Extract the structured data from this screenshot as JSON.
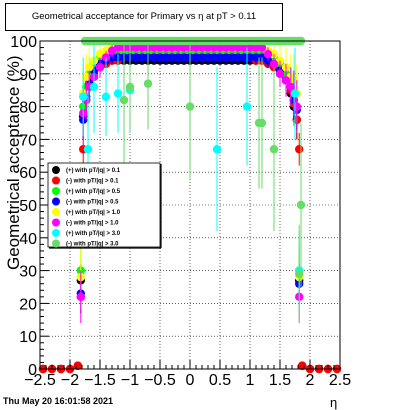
{
  "title": "Geometrical acceptance for Primary vs   η at pT > 0.11",
  "timestamp": "Thu May 20 16:01:58 2021",
  "chart_data": {
    "type": "scatter",
    "title": "Geometrical acceptance for Primary vs   η at pT > 0.11",
    "xlabel": "η",
    "ylabel": "Geometrical acceptance (%)",
    "xlim": [
      -2.5,
      2.5
    ],
    "ylim": [
      0,
      100
    ],
    "xticks": [
      "−2.5",
      "−2",
      "−1.5",
      "−1",
      "−0.5",
      "0",
      "0.5",
      "1",
      "1.5",
      "2",
      "2.5"
    ],
    "yticks": [
      "0",
      "10",
      "20",
      "30",
      "40",
      "50",
      "60",
      "70",
      "80",
      "90",
      "100"
    ],
    "grid": true,
    "legend_position": "left-center",
    "series": [
      {
        "name": "(+) with pT/|q| > 0.1",
        "color": "#000000",
        "x": [
          -2.45,
          -2.3,
          -2.15,
          -2.0,
          -1.87,
          -1.82,
          -1.78,
          -1.73,
          -1.68,
          -1.6,
          -1.5,
          -1.4,
          -1.3,
          -1.2,
          -1.1,
          -1.0,
          -0.9,
          -0.8,
          -0.7,
          -0.6,
          -0.5,
          -0.4,
          -0.3,
          -0.2,
          -0.1,
          0.0,
          0.1,
          0.2,
          0.3,
          0.4,
          0.5,
          0.6,
          0.7,
          0.8,
          0.9,
          1.0,
          1.1,
          1.2,
          1.3,
          1.4,
          1.5,
          1.6,
          1.68,
          1.73,
          1.78,
          1.82,
          1.87,
          2.0,
          2.15,
          2.3,
          2.45
        ],
        "y": [
          0,
          0,
          0,
          0,
          1,
          27,
          77,
          82,
          88,
          91,
          93,
          94,
          94,
          94,
          94,
          94,
          94,
          94,
          94,
          94,
          94,
          94,
          94,
          94,
          94,
          94,
          94,
          94,
          94,
          94,
          94,
          94,
          94,
          94,
          94,
          94,
          94,
          94,
          94,
          93,
          91,
          89,
          84,
          80,
          76,
          27,
          1,
          0,
          0,
          0,
          0
        ],
        "err": [
          0,
          0,
          0,
          0,
          0,
          5,
          6,
          4,
          3,
          2,
          1,
          1,
          1,
          1,
          1,
          1,
          1,
          1,
          1,
          1,
          1,
          1,
          1,
          1,
          1,
          1,
          1,
          1,
          1,
          1,
          1,
          1,
          1,
          1,
          1,
          1,
          1,
          1,
          1,
          1,
          2,
          3,
          4,
          5,
          6,
          5,
          0,
          0,
          0,
          0,
          0
        ]
      },
      {
        "name": "(-) with pT/|q| > 0.1",
        "color": "#ff0000",
        "x": [
          -2.45,
          -2.3,
          -2.15,
          -2.0,
          -1.87,
          -1.82,
          -1.78,
          -1.73,
          -1.68,
          -1.6,
          -1.5,
          -1.4,
          -1.3,
          -1.2,
          -1.1,
          -1.0,
          -0.9,
          -0.8,
          -0.7,
          -0.6,
          -0.5,
          -0.4,
          -0.3,
          -0.2,
          -0.1,
          0.0,
          0.1,
          0.2,
          0.3,
          0.4,
          0.5,
          0.6,
          0.7,
          0.8,
          0.9,
          1.0,
          1.1,
          1.2,
          1.3,
          1.4,
          1.5,
          1.6,
          1.68,
          1.73,
          1.78,
          1.82,
          1.87,
          2.0,
          2.15,
          2.3,
          2.45
        ],
        "y": [
          0,
          0,
          0,
          0,
          1,
          22,
          67,
          82,
          87,
          90,
          92,
          93,
          94,
          94,
          95,
          95,
          95,
          95,
          95,
          95,
          95,
          95,
          95,
          95,
          95,
          95,
          95,
          95,
          95,
          95,
          95,
          95,
          95,
          95,
          95,
          95,
          94,
          94,
          93,
          92,
          90,
          88,
          85,
          81,
          76,
          67,
          1,
          0,
          0,
          0,
          0
        ],
        "err": [
          0,
          0,
          0,
          0,
          0,
          5,
          6,
          4,
          3,
          2,
          1,
          1,
          1,
          1,
          1,
          1,
          1,
          1,
          1,
          1,
          1,
          1,
          1,
          1,
          1,
          1,
          1,
          1,
          1,
          1,
          1,
          1,
          1,
          1,
          1,
          1,
          1,
          1,
          1,
          1,
          2,
          3,
          4,
          5,
          6,
          5,
          0,
          0,
          0,
          0,
          0
        ]
      },
      {
        "name": "(+) with pT/|q| > 0.5",
        "color": "#00ff00",
        "x": [
          -1.82,
          -1.78,
          -1.73,
          -1.68,
          -1.6,
          -1.5,
          -1.4,
          -1.3,
          -1.2,
          -1.1,
          -1.0,
          -0.9,
          -0.8,
          -0.7,
          -0.6,
          -0.5,
          -0.4,
          -0.3,
          -0.2,
          -0.1,
          0.0,
          0.1,
          0.2,
          0.3,
          0.4,
          0.5,
          0.6,
          0.7,
          0.8,
          0.9,
          1.0,
          1.1,
          1.2,
          1.3,
          1.4,
          1.5,
          1.6,
          1.68,
          1.73,
          1.78,
          1.82
        ],
        "y": [
          30,
          80,
          86,
          90,
          93,
          95,
          96,
          97,
          97,
          97,
          97,
          97,
          97,
          97,
          97,
          97,
          97,
          97,
          97,
          97,
          97,
          97,
          97,
          97,
          97,
          97,
          97,
          97,
          97,
          97,
          97,
          97,
          97,
          97,
          95,
          93,
          90,
          86,
          82,
          80,
          30
        ],
        "err": [
          8,
          8,
          6,
          5,
          4,
          3,
          2,
          2,
          2,
          2,
          2,
          2,
          2,
          2,
          2,
          2,
          2,
          2,
          2,
          2,
          2,
          2,
          2,
          2,
          2,
          2,
          2,
          2,
          2,
          2,
          2,
          2,
          2,
          2,
          3,
          4,
          5,
          6,
          8,
          8,
          8
        ]
      },
      {
        "name": "(-) with pT/|q| > 0.5",
        "color": "#0000ff",
        "x": [
          -1.82,
          -1.78,
          -1.73,
          -1.68,
          -1.6,
          -1.5,
          -1.4,
          -1.3,
          -1.2,
          -1.1,
          -1.0,
          -0.9,
          -0.8,
          -0.7,
          -0.6,
          -0.5,
          -0.4,
          -0.3,
          -0.2,
          -0.1,
          0.0,
          0.1,
          0.2,
          0.3,
          0.4,
          0.5,
          0.6,
          0.7,
          0.8,
          0.9,
          1.0,
          1.1,
          1.2,
          1.3,
          1.4,
          1.5,
          1.6,
          1.68,
          1.73,
          1.78,
          1.82
        ],
        "y": [
          23,
          76,
          83,
          87,
          91,
          93,
          94,
          95,
          95,
          95,
          95,
          95,
          95,
          95,
          95,
          95,
          95,
          95,
          95,
          95,
          95,
          95,
          95,
          95,
          95,
          95,
          95,
          95,
          95,
          95,
          95,
          95,
          95,
          94,
          93,
          91,
          88,
          86,
          82,
          79,
          26
        ],
        "err": [
          6,
          6,
          5,
          4,
          3,
          2,
          2,
          2,
          2,
          2,
          2,
          2,
          2,
          2,
          2,
          2,
          2,
          2,
          2,
          2,
          2,
          2,
          2,
          2,
          2,
          2,
          2,
          2,
          2,
          2,
          2,
          2,
          2,
          2,
          2,
          3,
          4,
          5,
          6,
          6,
          6
        ]
      },
      {
        "name": "(+) with pT/|q| > 1.0",
        "color": "#ffff00",
        "x": [
          -1.82,
          -1.78,
          -1.73,
          -1.68,
          -1.6,
          -1.5,
          -1.4,
          -1.3,
          -1.2,
          -1.1,
          -1.0,
          -0.9,
          -0.8,
          -0.7,
          -0.6,
          -0.5,
          -0.4,
          -0.3,
          -0.2,
          -0.1,
          0.0,
          0.1,
          0.2,
          0.3,
          0.4,
          0.5,
          0.6,
          0.7,
          0.8,
          0.9,
          1.0,
          1.1,
          1.2,
          1.3,
          1.4,
          1.5,
          1.6,
          1.68,
          1.73,
          1.78,
          1.82
        ],
        "y": [
          28,
          84,
          89,
          92,
          94,
          96,
          97,
          98,
          98,
          98,
          98,
          98,
          98,
          98,
          98,
          98,
          98,
          98,
          98,
          98,
          98,
          98,
          98,
          98,
          98,
          98,
          98,
          98,
          98,
          98,
          98,
          98,
          98,
          97,
          96,
          94,
          92,
          89,
          88,
          84,
          28
        ],
        "err": [
          10,
          9,
          7,
          6,
          5,
          3,
          2,
          2,
          2,
          2,
          2,
          2,
          2,
          2,
          2,
          2,
          2,
          2,
          2,
          2,
          2,
          2,
          2,
          2,
          2,
          2,
          2,
          2,
          2,
          2,
          2,
          2,
          2,
          2,
          3,
          5,
          6,
          7,
          8,
          9,
          10
        ]
      },
      {
        "name": "(-) with pT/|q| > 1.0",
        "color": "#ff00ff",
        "x": [
          -1.82,
          -1.78,
          -1.73,
          -1.68,
          -1.6,
          -1.5,
          -1.4,
          -1.3,
          -1.2,
          -1.1,
          -1.0,
          -0.9,
          -0.8,
          -0.7,
          -0.6,
          -0.5,
          -0.4,
          -0.3,
          -0.2,
          -0.1,
          0.0,
          0.1,
          0.2,
          0.3,
          0.4,
          0.5,
          0.6,
          0.7,
          0.8,
          0.9,
          1.0,
          1.1,
          1.2,
          1.3,
          1.4,
          1.5,
          1.6,
          1.68,
          1.73,
          1.78,
          1.82
        ],
        "y": [
          22,
          78,
          82,
          86,
          89,
          92,
          95,
          97,
          98,
          98,
          98,
          98,
          98,
          98,
          98,
          98,
          98,
          98,
          98,
          98,
          98,
          98,
          98,
          98,
          98,
          98,
          98,
          98,
          98,
          98,
          98,
          98,
          98,
          96,
          93,
          90,
          88,
          86,
          84,
          80,
          22
        ],
        "err": [
          8,
          8,
          6,
          5,
          4,
          3,
          2,
          2,
          2,
          2,
          2,
          2,
          2,
          2,
          2,
          2,
          2,
          2,
          2,
          2,
          2,
          2,
          2,
          2,
          2,
          2,
          2,
          2,
          2,
          2,
          2,
          2,
          2,
          2,
          3,
          4,
          5,
          6,
          7,
          8,
          8
        ]
      },
      {
        "name": "(+) with pT/|q| > 3.0",
        "color": "#00ffff",
        "x": [
          -1.78,
          -1.7,
          -1.6,
          -1.4,
          -1.2,
          -1.0,
          0.45,
          0.95,
          1.75,
          1.82
        ],
        "y": [
          83,
          67,
          86,
          83,
          84,
          85,
          67,
          80,
          84,
          30
        ],
        "err": [
          12,
          18,
          14,
          12,
          12,
          12,
          25,
          18,
          14,
          12
        ]
      },
      {
        "name": "(-) with pT/|q| > 3.0",
        "color": "#66dd66",
        "x": [
          -1.75,
          -1.7,
          -1.65,
          -1.6,
          -1.55,
          -1.5,
          -1.45,
          -1.4,
          -1.35,
          -1.3,
          -1.25,
          -1.2,
          -1.15,
          -1.1,
          -1.05,
          -1.0,
          -0.95,
          -0.9,
          -0.85,
          -0.8,
          -0.75,
          -0.7,
          -0.65,
          -0.6,
          -0.55,
          -0.5,
          -0.45,
          -0.4,
          -0.35,
          -0.3,
          -0.25,
          -0.2,
          -0.15,
          -0.1,
          -0.05,
          0.0,
          0.05,
          0.1,
          0.15,
          0.2,
          0.25,
          0.3,
          0.35,
          0.4,
          0.45,
          0.5,
          0.55,
          0.6,
          0.65,
          0.7,
          0.75,
          0.8,
          0.85,
          0.9,
          0.95,
          1.0,
          1.05,
          1.1,
          1.15,
          1.2,
          1.25,
          1.3,
          1.35,
          1.4,
          1.45,
          1.5,
          1.55,
          1.6,
          1.65,
          1.7,
          1.75,
          1.8,
          1.85,
          -1.0,
          -0.7,
          -1.1,
          0.0,
          1.15,
          1.2,
          1.4,
          1.85,
          1.82
        ],
        "y": [
          100,
          100,
          100,
          100,
          100,
          100,
          100,
          100,
          100,
          100,
          100,
          100,
          100,
          100,
          100,
          100,
          100,
          100,
          100,
          100,
          100,
          100,
          100,
          100,
          100,
          100,
          100,
          100,
          100,
          100,
          100,
          100,
          100,
          100,
          100,
          100,
          100,
          100,
          100,
          100,
          100,
          100,
          100,
          100,
          100,
          100,
          100,
          100,
          100,
          100,
          100,
          100,
          100,
          100,
          100,
          100,
          100,
          100,
          100,
          100,
          100,
          100,
          100,
          100,
          100,
          100,
          100,
          100,
          100,
          100,
          100,
          100,
          100,
          86,
          87,
          82,
          80,
          75,
          75,
          67,
          50,
          29
        ],
        "err": [
          0,
          0,
          0,
          0,
          0,
          0,
          0,
          0,
          0,
          0,
          0,
          0,
          0,
          0,
          0,
          0,
          0,
          0,
          0,
          0,
          0,
          0,
          0,
          0,
          0,
          0,
          0,
          0,
          0,
          0,
          0,
          0,
          0,
          0,
          0,
          0,
          0,
          0,
          0,
          0,
          0,
          0,
          0,
          0,
          0,
          0,
          0,
          0,
          0,
          0,
          0,
          0,
          0,
          0,
          0,
          0,
          0,
          0,
          0,
          0,
          0,
          0,
          0,
          0,
          0,
          0,
          0,
          0,
          0,
          0,
          0,
          0,
          0,
          14,
          14,
          20,
          22,
          20,
          20,
          25,
          25,
          15
        ]
      }
    ]
  }
}
